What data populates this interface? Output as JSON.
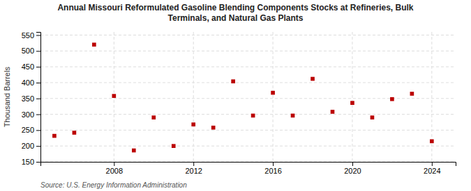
{
  "chart_data": {
    "type": "scatter",
    "title": "Annual Missouri Reformulated Gasoline Blending Components Stocks at Refineries, Bulk\nTerminals, and Natural Gas Plants",
    "ylabel": "Thousand Barrels",
    "source": "Source: U.S. Energy Information Administration",
    "x": [
      2005,
      2006,
      2007,
      2008,
      2009,
      2010,
      2011,
      2012,
      2013,
      2014,
      2015,
      2016,
      2017,
      2018,
      2019,
      2020,
      2021,
      2022,
      2023,
      2024
    ],
    "values": [
      232,
      242,
      520,
      358,
      186,
      290,
      200,
      268,
      258,
      404,
      296,
      368,
      296,
      412,
      308,
      336,
      290,
      348,
      365,
      215
    ],
    "color": "#bb0000",
    "marker": "square",
    "xlim": [
      2004.3,
      2025.2
    ],
    "xticks": [
      2008,
      2012,
      2016,
      2020,
      2024
    ],
    "ylim": [
      150,
      560
    ],
    "yticks": [
      150,
      200,
      250,
      300,
      350,
      400,
      450,
      500,
      550
    ],
    "grid": true
  }
}
